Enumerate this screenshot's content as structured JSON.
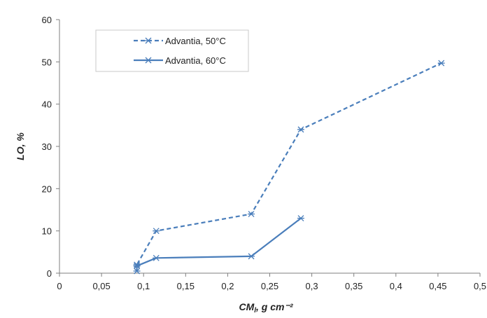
{
  "chart_data": {
    "type": "line",
    "xlabel": "CM",
    "xlabel_sub": "l",
    "xlabel_unit": ", g cm⁻²",
    "ylabel": "LO, %",
    "xlim": [
      0,
      0.5
    ],
    "ylim": [
      0,
      60
    ],
    "x_ticks": [
      0,
      0.05,
      0.1,
      0.15,
      0.2,
      0.25,
      0.3,
      0.35,
      0.4,
      0.45,
      0.5
    ],
    "x_tick_labels": [
      "0",
      "0,05",
      "0,1",
      "0,15",
      "0,2",
      "0,25",
      "0,3",
      "0,35",
      "0,4",
      "0,45",
      "0,5"
    ],
    "y_ticks": [
      0,
      10,
      20,
      30,
      40,
      50,
      60
    ],
    "y_tick_labels": [
      "0",
      "10",
      "20",
      "30",
      "40",
      "50",
      "60"
    ],
    "grid": false,
    "legend_position": "top-left",
    "series": [
      {
        "name": "Advantia, 50°C",
        "style": "dashed",
        "color": "#4a7ebb",
        "marker": "asterisk",
        "points": [
          [
            0.092,
            0.5
          ],
          [
            0.092,
            2
          ],
          [
            0.115,
            10
          ],
          [
            0.228,
            14
          ],
          [
            0.287,
            34
          ],
          [
            0.454,
            49.7
          ]
        ]
      },
      {
        "name": "Advantia, 60°C",
        "style": "solid",
        "color": "#4a7ebb",
        "marker": "asterisk",
        "points": [
          [
            0.092,
            1.7
          ],
          [
            0.115,
            3.6
          ],
          [
            0.228,
            4
          ],
          [
            0.287,
            13
          ]
        ]
      }
    ]
  }
}
